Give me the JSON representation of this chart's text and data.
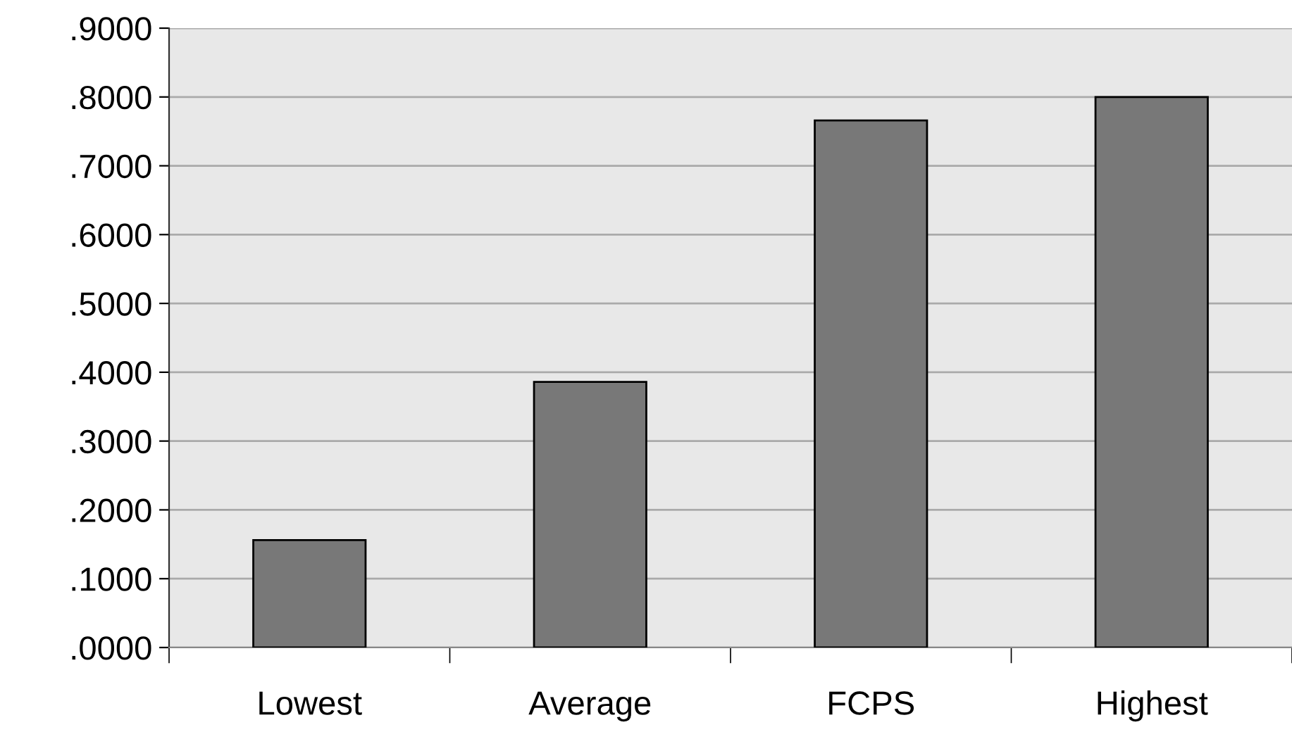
{
  "chart_data": {
    "type": "bar",
    "categories": [
      "Lowest",
      "Average",
      "FCPS",
      "Highest"
    ],
    "values": [
      0.156,
      0.386,
      0.766,
      0.8
    ],
    "color": "#787878",
    "ylim": [
      0,
      0.9
    ],
    "yticks": [
      {
        "value": 0,
        "label": ".0000"
      },
      {
        "value": 0.1,
        "label": ".1000"
      },
      {
        "value": 0.2,
        "label": ".2000"
      },
      {
        "value": 0.3,
        "label": ".3000"
      },
      {
        "value": 0.4,
        "label": ".4000"
      },
      {
        "value": 0.5,
        "label": ".5000"
      },
      {
        "value": 0.6,
        "label": ".6000"
      },
      {
        "value": 0.7,
        "label": ".7000"
      },
      {
        "value": 0.8,
        "label": ".8000"
      },
      {
        "value": 0.9,
        "label": ".9000"
      }
    ],
    "grid": "y"
  }
}
